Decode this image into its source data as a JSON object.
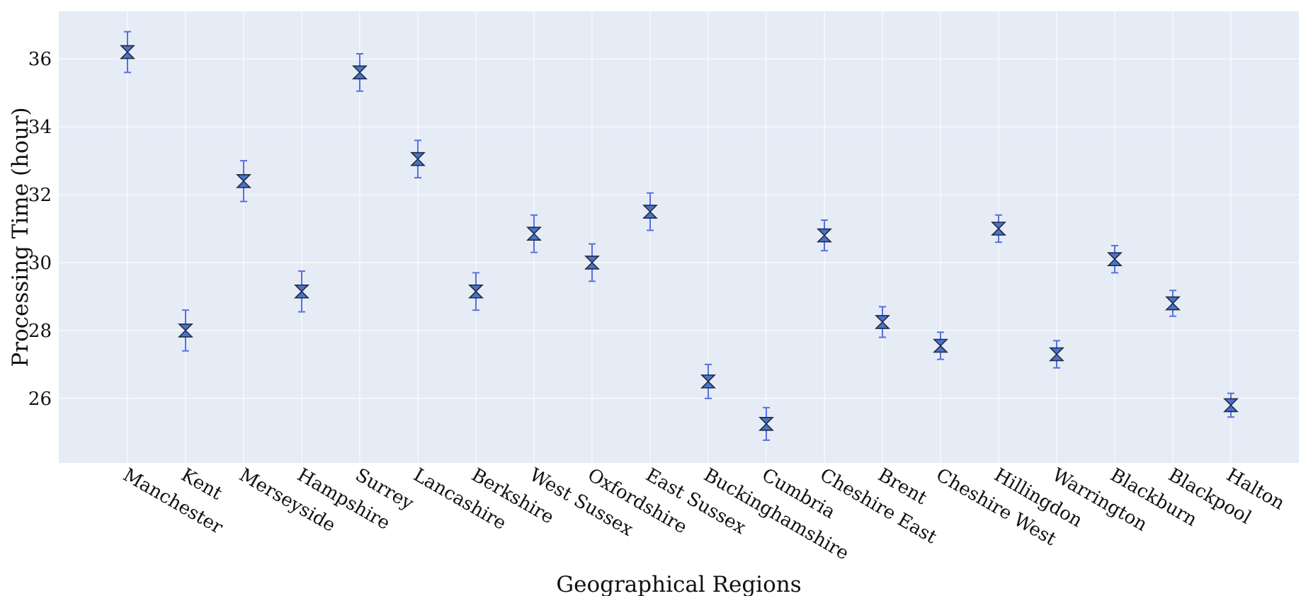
{
  "chart_data": {
    "type": "scatter",
    "title": "",
    "xlabel": "Geographical Regions",
    "ylabel": "Processing Time (hour)",
    "categories": [
      "Manchester",
      "Kent",
      "Merseyside",
      "Hampshire",
      "Surrey",
      "Lancashire",
      "Berkshire",
      "West Sussex",
      "Oxfordshire",
      "East Sussex",
      "Buckinghamshire",
      "Cumbria",
      "Cheshire East",
      "Brent",
      "Cheshire West",
      "Hillingdon",
      "Warrington",
      "Blackburn",
      "Blackpool",
      "Halton"
    ],
    "values": [
      36.2,
      28.0,
      32.4,
      29.15,
      35.6,
      33.05,
      29.15,
      30.85,
      30.0,
      31.5,
      26.5,
      25.25,
      30.8,
      28.25,
      27.55,
      31.0,
      27.3,
      30.1,
      28.8,
      25.8
    ],
    "errors": [
      0.6,
      0.6,
      0.6,
      0.6,
      0.55,
      0.55,
      0.55,
      0.55,
      0.55,
      0.55,
      0.5,
      0.48,
      0.45,
      0.45,
      0.4,
      0.4,
      0.4,
      0.4,
      0.38,
      0.35
    ],
    "ylim": [
      24.1,
      37.4
    ],
    "yticks": [
      26,
      28,
      30,
      32,
      34,
      36
    ],
    "grid": true,
    "marker": "hourglass",
    "colors": {
      "plot_bg": "#e5ecf6",
      "grid": "#ffffff",
      "marker_fill": "#4a74c8",
      "marker_edge": "#1f2a44",
      "errorbar": "#5a6fe0"
    }
  }
}
